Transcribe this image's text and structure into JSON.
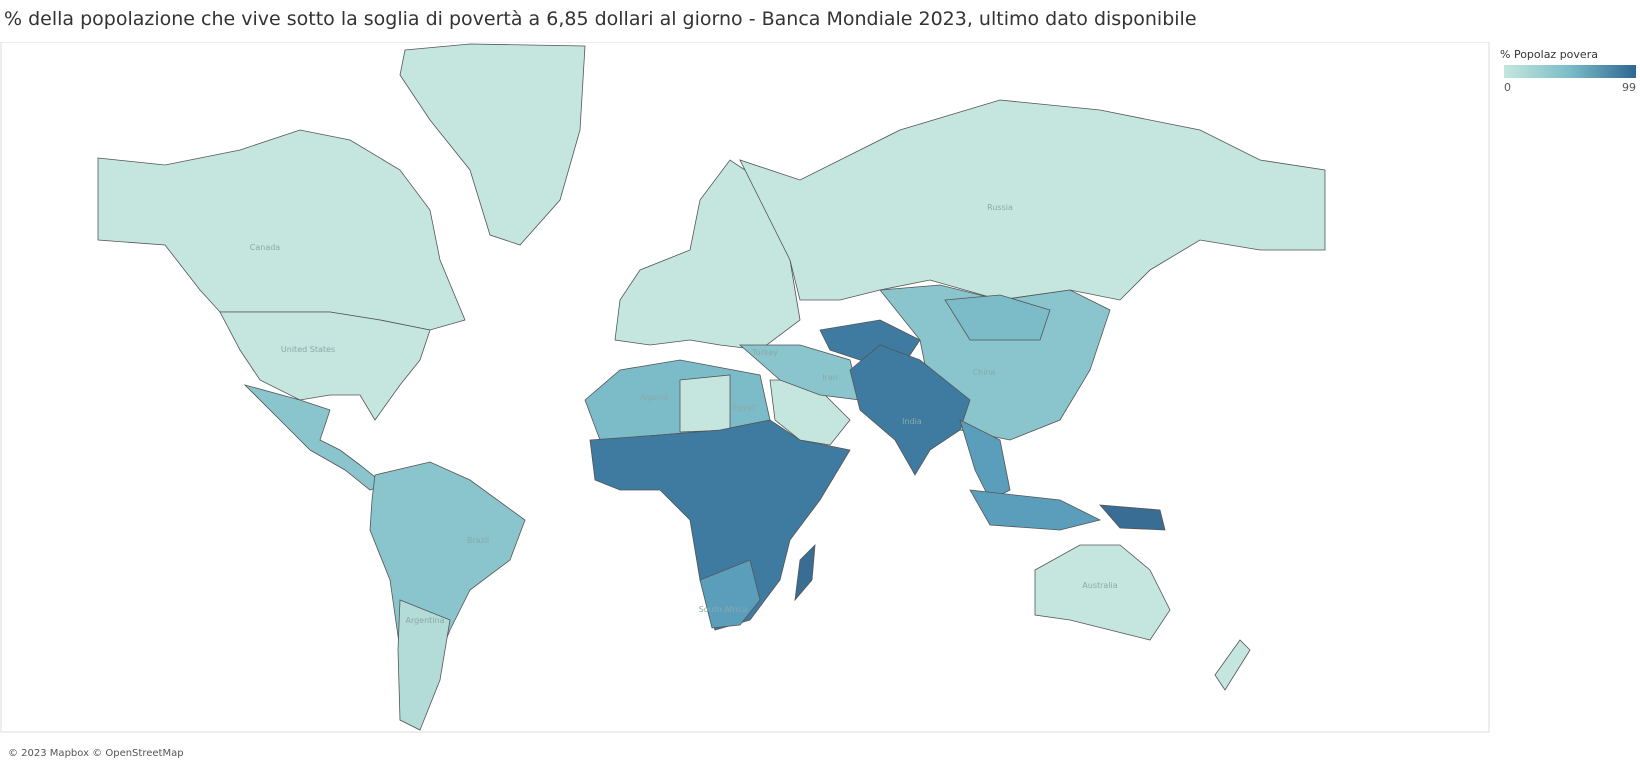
{
  "header": {
    "title": "% della popolazione che vive sotto la soglia di povertà a 6,85 dollari al giorno - Banca Mondiale 2023, ultimo dato disponibile"
  },
  "legend": {
    "title": "% Popolaz povera",
    "min": 0,
    "max": 99
  },
  "map": {
    "labels": [
      "Canada",
      "United States",
      "Brazil",
      "Argentina",
      "Algeria",
      "Egypt",
      "Turkey",
      "Iran",
      "India",
      "China",
      "Russia",
      "Australia",
      "South Africa"
    ],
    "attribution": "© 2023 Mapbox © OpenStreetMap"
  }
}
